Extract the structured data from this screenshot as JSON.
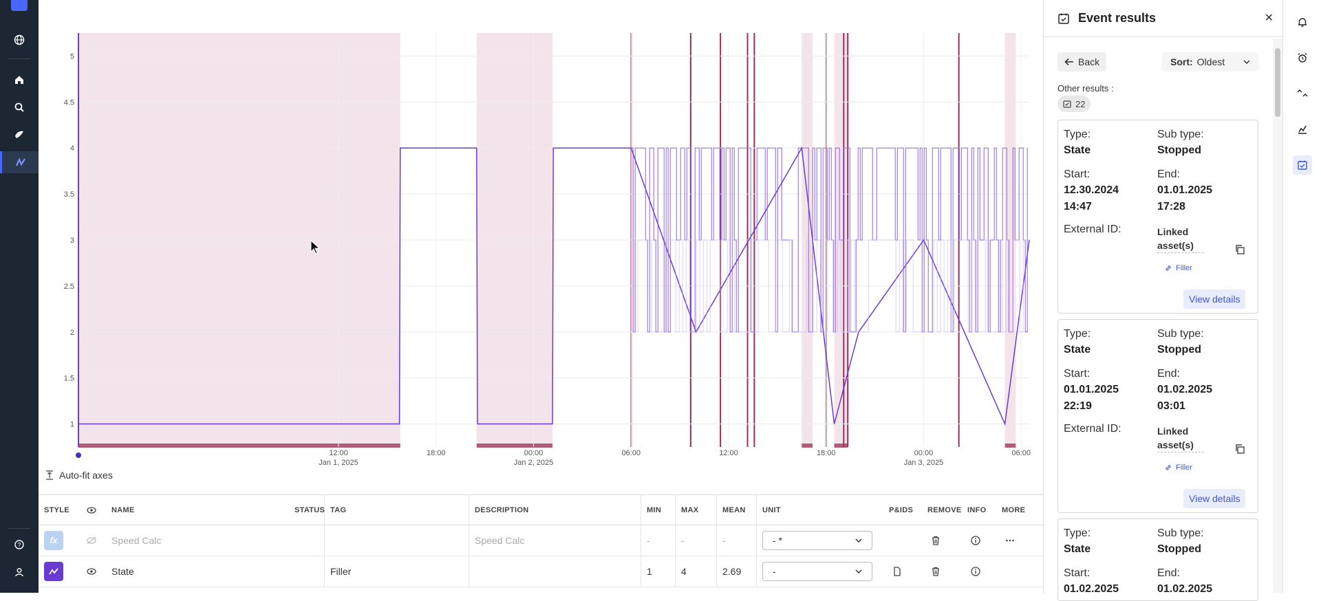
{
  "left_rail": {
    "items": [
      "globe-icon",
      "home-icon",
      "search-icon",
      "explore-icon",
      "charts-icon"
    ],
    "bottom": [
      "help-icon",
      "user-icon"
    ]
  },
  "chart_data": {
    "type": "line",
    "series": [
      {
        "name": "State",
        "color": "#6a3bd2",
        "x": [
          "2024-12-31T20:00",
          "2025-01-01T02:00",
          "2025-01-01T11:00",
          "2025-01-01T15:45",
          "2025-01-01T15:48",
          "2025-01-01T20:30",
          "2025-01-01T20:33",
          "2025-01-02T01:10",
          "2025-01-02T01:13",
          "2025-01-02T06:00",
          "2025-01-02T10:00",
          "2025-01-02T16:30",
          "2025-01-02T18:30",
          "2025-01-02T20:00",
          "2025-01-03T00:00",
          "2025-01-03T05:00",
          "2025-01-03T06:30"
        ],
        "y": [
          1,
          1,
          1,
          1,
          4,
          4,
          1,
          1,
          4,
          4,
          2,
          4,
          1,
          2,
          3,
          1,
          3
        ]
      }
    ],
    "event_shading": [
      [
        "2024-12-31T20:00",
        "2025-01-01T15:48"
      ],
      [
        "2025-01-01T20:30",
        "2025-01-02T01:10"
      ],
      [
        "2025-01-02T16:30",
        "2025-01-02T17:10"
      ],
      [
        "2025-01-02T18:30",
        "2025-01-02T19:20"
      ],
      [
        "2025-01-03T05:00",
        "2025-01-03T05:40"
      ]
    ],
    "yticks": [
      "1",
      "1.5",
      "2",
      "2.5",
      "3",
      "3.5",
      "4",
      "4.5",
      "5"
    ],
    "xticks": [
      {
        "label": "12:00",
        "sub": "Jan 1, 2025"
      },
      {
        "label": "18:00",
        "sub": ""
      },
      {
        "label": "00:00",
        "sub": "Jan 2, 2025"
      },
      {
        "label": "06:00",
        "sub": ""
      },
      {
        "label": "12:00",
        "sub": ""
      },
      {
        "label": "18:00",
        "sub": ""
      },
      {
        "label": "00:00",
        "sub": "Jan 3, 2025"
      },
      {
        "label": "06:00",
        "sub": ""
      }
    ],
    "ylim": [
      0.75,
      5.25
    ],
    "grid": true
  },
  "autofit_label": "Auto-fit axes",
  "table": {
    "headers": {
      "style": "STYLE",
      "name": "NAME",
      "status": "STATUS",
      "tag": "TAG",
      "description": "DESCRIPTION",
      "min": "MIN",
      "max": "MAX",
      "mean": "MEAN",
      "unit": "UNIT",
      "pids": "P&IDS",
      "remove": "REMOVE",
      "info": "INFO",
      "more": "MORE"
    },
    "rows": [
      {
        "icon": "fx",
        "name": "Speed Calc",
        "tag": "",
        "description": "Speed Calc",
        "min": "-",
        "max": "-",
        "mean": "-",
        "unit": "- *"
      },
      {
        "icon": "line-chart-icon",
        "name": "State",
        "tag": "Filler",
        "description": "",
        "min": "1",
        "max": "4",
        "mean": "2.69",
        "unit": "-"
      }
    ]
  },
  "panel": {
    "title": "Event results",
    "back": "Back",
    "sort_label": "Sort:",
    "sort_value": "Oldest",
    "other_results_label": "Other results :",
    "other_results_count": "22",
    "labels": {
      "type": "Type:",
      "subtype": "Sub type:",
      "start": "Start:",
      "end": "End:",
      "external_id": "External ID:",
      "linked": "Linked asset(s)",
      "filter": "Filler",
      "view": "View details"
    },
    "cards": [
      {
        "type": "State",
        "subtype": "Stopped",
        "start_date": "12.30.2024",
        "start_time": "14:47",
        "end_date": "01.01.2025",
        "end_time": "17:28"
      },
      {
        "type": "State",
        "subtype": "Stopped",
        "start_date": "01.01.2025",
        "start_time": "22:19",
        "end_date": "01.02.2025",
        "end_time": "03:01"
      },
      {
        "type": "State",
        "subtype": "Stopped",
        "start_date": "01.02.2025",
        "start_time": "",
        "end_date": "01.02.2025",
        "end_time": ""
      }
    ]
  },
  "right_rail": [
    "bell-icon",
    "alarm-icon",
    "timeseries-icon",
    "chart-icon",
    "events-icon"
  ]
}
